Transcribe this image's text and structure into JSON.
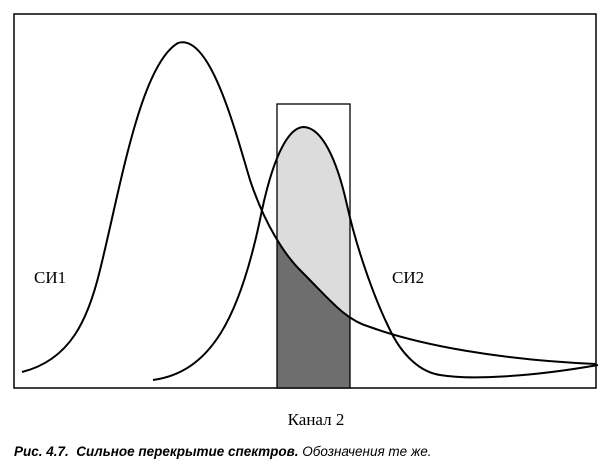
{
  "figure": {
    "label_si1": "СИ1",
    "label_si2": "СИ2",
    "channel_label": "Канал 2",
    "colors": {
      "frame": "#000000",
      "curve": "#000000",
      "light_fill": "#dcdcdc",
      "dark_fill": "#6e6e6e"
    }
  },
  "caption": {
    "number": "Рис. 4.7.",
    "title": "Сильное перекрытие спектров.",
    "note": "Обозначения те же."
  }
}
